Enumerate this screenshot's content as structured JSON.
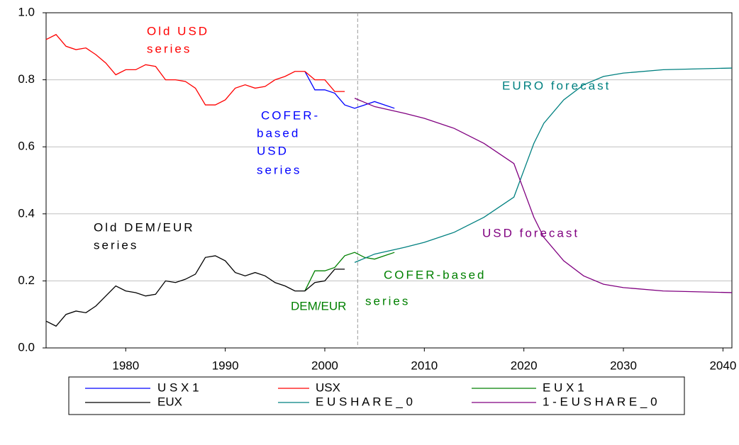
{
  "chart_data": {
    "type": "line",
    "xlim": [
      1972,
      2040.9
    ],
    "ylim": [
      0,
      1.0
    ],
    "xticks": [
      1980,
      1990,
      2000,
      2010,
      2020,
      2030,
      2040
    ],
    "yticks": [
      {
        "value": 0,
        "label": "0.0"
      },
      0.2,
      0.4,
      0.6,
      0.8,
      {
        "value": 1,
        "label": "1.0"
      }
    ],
    "grid": true,
    "vline": 2003.3,
    "series": [
      {
        "name": "U S X 1",
        "color": "#0000ff",
        "x": [
          1998,
          1999,
          2000,
          2001,
          2002,
          2003,
          2004,
          2005,
          2006,
          2007
        ],
        "values": [
          0.825,
          0.77,
          0.77,
          0.76,
          0.725,
          0.715,
          0.725,
          0.735,
          0.725,
          0.715
        ]
      },
      {
        "name": "USX",
        "color": "#ff0000",
        "x": [
          1972,
          1973,
          1974,
          1975,
          1976,
          1977,
          1978,
          1979,
          1980,
          1981,
          1982,
          1983,
          1984,
          1985,
          1986,
          1987,
          1988,
          1989,
          1990,
          1991,
          1992,
          1993,
          1994,
          1995,
          1996,
          1997,
          1998,
          1999,
          2000,
          2001,
          2002
        ],
        "values": [
          0.92,
          0.935,
          0.9,
          0.89,
          0.895,
          0.875,
          0.85,
          0.815,
          0.83,
          0.83,
          0.845,
          0.84,
          0.8,
          0.8,
          0.795,
          0.775,
          0.725,
          0.725,
          0.74,
          0.775,
          0.785,
          0.775,
          0.78,
          0.8,
          0.81,
          0.825,
          0.825,
          0.8,
          0.8,
          0.765,
          0.765
        ]
      },
      {
        "name": "E U X 1",
        "color": "#008000",
        "x": [
          1998,
          1999,
          2000,
          2001,
          2002,
          2003,
          2004,
          2005,
          2006,
          2007
        ],
        "values": [
          0.17,
          0.23,
          0.23,
          0.24,
          0.275,
          0.285,
          0.27,
          0.265,
          0.275,
          0.285
        ]
      },
      {
        "name": "EUX",
        "color": "#000000",
        "x": [
          1972,
          1973,
          1974,
          1975,
          1976,
          1977,
          1978,
          1979,
          1980,
          1981,
          1982,
          1983,
          1984,
          1985,
          1986,
          1987,
          1988,
          1989,
          1990,
          1991,
          1992,
          1993,
          1994,
          1995,
          1996,
          1997,
          1998,
          1999,
          2000,
          2001,
          2002
        ],
        "values": [
          0.08,
          0.065,
          0.1,
          0.11,
          0.105,
          0.125,
          0.155,
          0.185,
          0.17,
          0.165,
          0.155,
          0.16,
          0.2,
          0.195,
          0.205,
          0.22,
          0.27,
          0.275,
          0.26,
          0.225,
          0.215,
          0.225,
          0.215,
          0.195,
          0.185,
          0.17,
          0.17,
          0.195,
          0.2,
          0.235,
          0.235
        ]
      },
      {
        "name": "E U S H A R E _ 0",
        "color": "#008080",
        "x": [
          2003,
          2005,
          2008,
          2010,
          2013,
          2016,
          2019,
          2020,
          2021,
          2022,
          2024,
          2026,
          2028,
          2030,
          2034,
          2040.9
        ],
        "values": [
          0.255,
          0.28,
          0.3,
          0.315,
          0.345,
          0.39,
          0.45,
          0.53,
          0.61,
          0.67,
          0.74,
          0.785,
          0.81,
          0.82,
          0.83,
          0.835
        ]
      },
      {
        "name": "1 - E U S H A R E _ 0",
        "color": "#800080",
        "x": [
          2003,
          2005,
          2008,
          2010,
          2013,
          2016,
          2019,
          2020,
          2021,
          2022,
          2024,
          2026,
          2028,
          2030,
          2034,
          2040.9
        ],
        "values": [
          0.745,
          0.72,
          0.7,
          0.685,
          0.655,
          0.61,
          0.55,
          0.47,
          0.39,
          0.33,
          0.26,
          0.215,
          0.19,
          0.18,
          0.17,
          0.165
        ]
      }
    ],
    "annotations": [
      "Old USD",
      "series",
      "COFER-",
      "based",
      "USD",
      "series",
      "Old DEM/EUR",
      "series",
      "COFER-based",
      "DEM/EUR",
      "series",
      "EURO forecast",
      "USD forecast"
    ]
  }
}
